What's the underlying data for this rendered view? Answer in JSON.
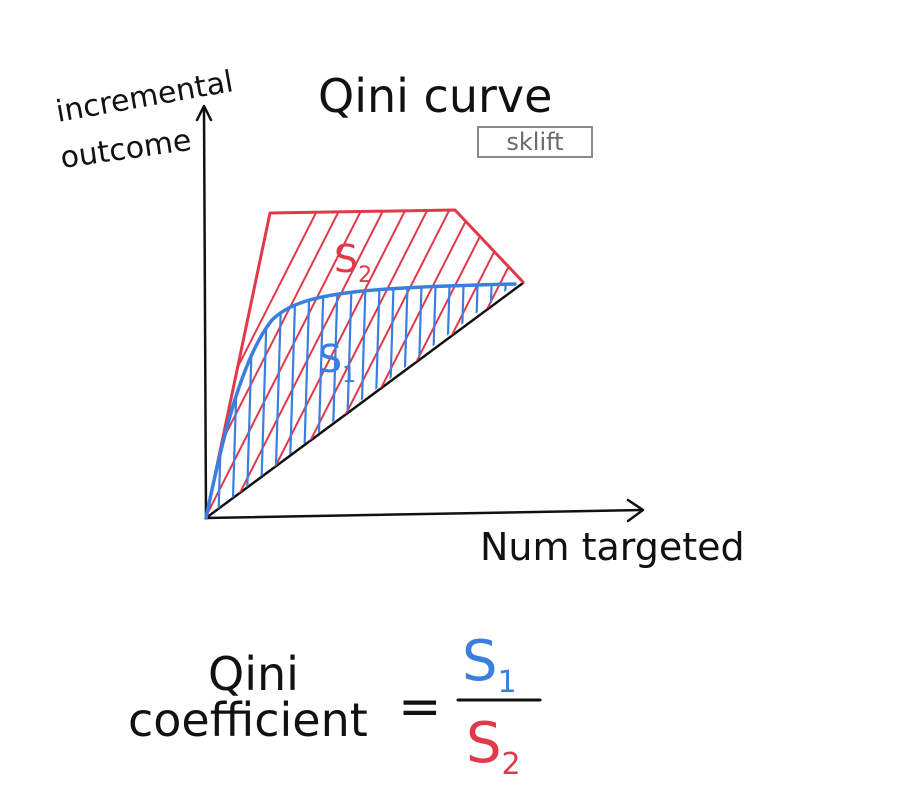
{
  "title": "Qini curve",
  "badge": "sklift",
  "y_axis_label_line1": "incremental",
  "y_axis_label_line2": "outcome",
  "x_axis_label": "Num targeted",
  "area_labels": {
    "s2": {
      "letter": "S",
      "sub": "2"
    },
    "s1": {
      "letter": "S",
      "sub": "1"
    }
  },
  "formula": {
    "lhs_line1": "Qini",
    "lhs_line2": "coefficient",
    "equals": "=",
    "numerator": {
      "letter": "S",
      "sub": "1"
    },
    "denominator": {
      "letter": "S",
      "sub": "2"
    }
  },
  "colors": {
    "ink": "#111111",
    "red": "#e03a4a",
    "blue": "#3a7fe0",
    "badge_border": "#8a8a8a",
    "badge_text": "#6a6a6a"
  }
}
